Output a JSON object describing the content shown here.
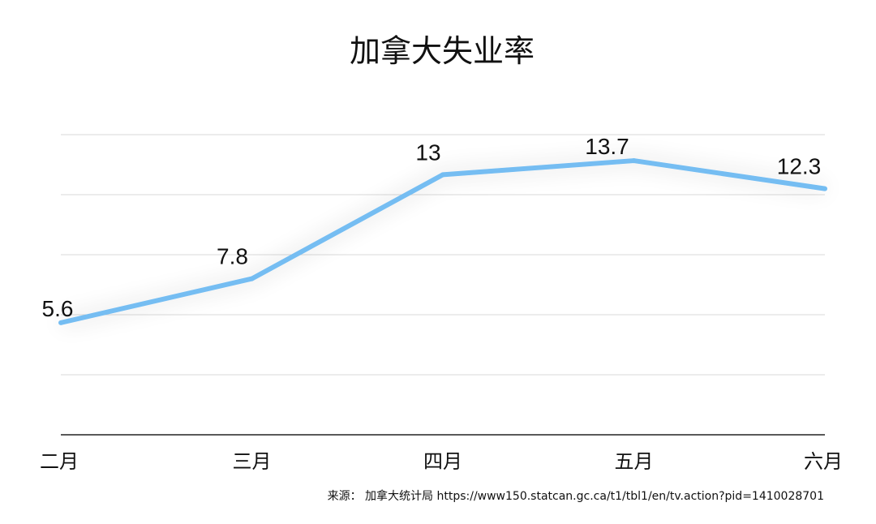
{
  "chart_data": {
    "type": "line",
    "title": "加拿大失业率",
    "categories": [
      "二月",
      "三月",
      "四月",
      "五月",
      "六月"
    ],
    "series": [
      {
        "values": [
          5.6,
          7.8,
          13,
          13.7,
          12.3
        ],
        "color": "#74bdf2"
      }
    ],
    "data_labels": [
      "5.6",
      "7.8",
      "13",
      "13.7",
      "12.3"
    ],
    "ylim": [
      0,
      15
    ],
    "grid": true,
    "legend": "none",
    "source": "来源： 加拿大统计局 https://www150.statcan.gc.ca/t1/tbl1/en/tv.action?pid=1410028701"
  },
  "colors": {
    "line": "#74bdf2",
    "grid": "#d9d9d9",
    "axis": "#222222",
    "text": "#111111"
  }
}
